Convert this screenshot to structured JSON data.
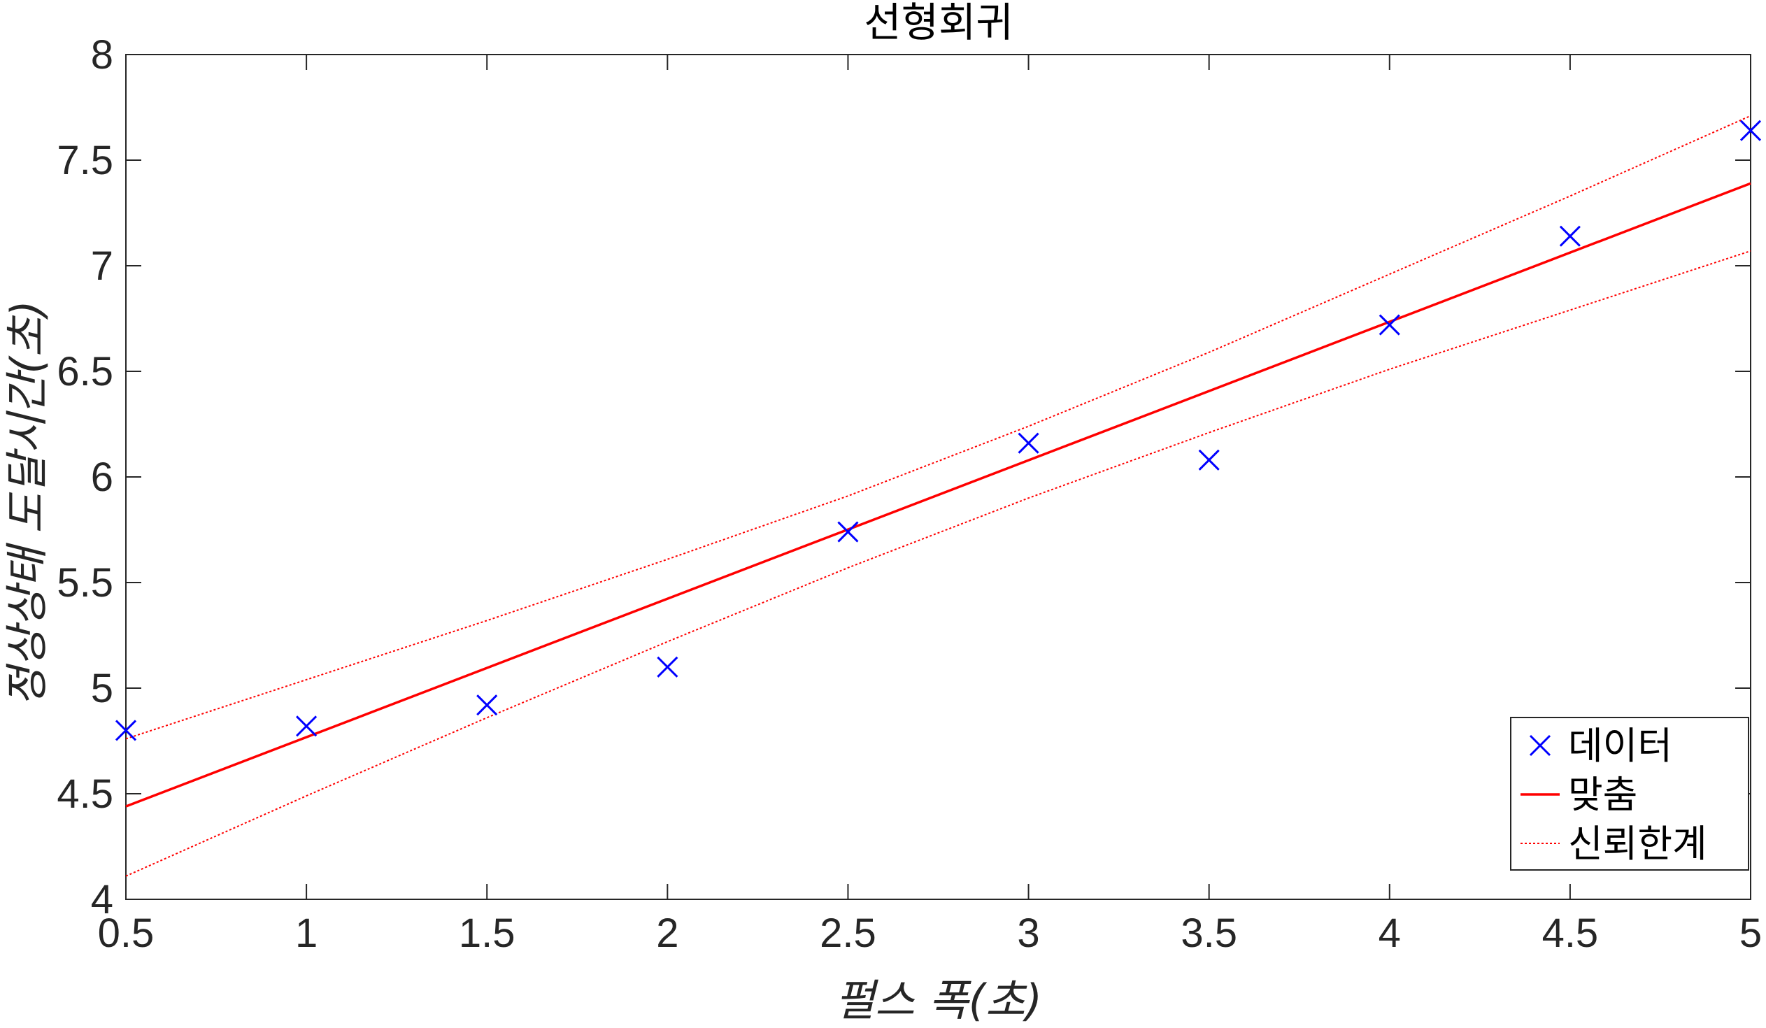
{
  "chart_data": {
    "type": "scatter",
    "title": "선형회귀",
    "xlabel": "펄스 폭(초)",
    "ylabel": "정상상태 도달시간(초)",
    "xlim": [
      0.5,
      5
    ],
    "ylim": [
      4,
      8
    ],
    "xticks": [
      "0.5",
      "1",
      "1.5",
      "2",
      "2.5",
      "3",
      "3.5",
      "4",
      "4.5",
      "5"
    ],
    "yticks": [
      "4",
      "4.5",
      "5",
      "5.5",
      "6",
      "6.5",
      "7",
      "7.5",
      "8"
    ],
    "grid": false,
    "legend_position": "bottom-right",
    "series": [
      {
        "name": "데이터",
        "kind": "marker",
        "marker": "x",
        "color": "#0000ff",
        "points": [
          [
            0.5,
            4.8
          ],
          [
            1.0,
            4.82
          ],
          [
            1.5,
            4.92
          ],
          [
            2.0,
            5.1
          ],
          [
            2.5,
            5.74
          ],
          [
            3.0,
            6.16
          ],
          [
            3.5,
            6.08
          ],
          [
            4.0,
            6.72
          ],
          [
            4.5,
            7.14
          ],
          [
            5.0,
            7.64
          ]
        ]
      },
      {
        "name": "맞춤",
        "kind": "line",
        "color": "#ff0000",
        "points": [
          [
            0.5,
            4.44
          ],
          [
            5.0,
            7.39
          ]
        ]
      },
      {
        "name": "신뢰한계",
        "kind": "dotted-line",
        "color": "#ff0000",
        "upper": [
          [
            0.5,
            4.76
          ],
          [
            1.0,
            5.04
          ],
          [
            1.5,
            5.32
          ],
          [
            2.0,
            5.61
          ],
          [
            2.5,
            5.91
          ],
          [
            3.0,
            6.24
          ],
          [
            3.5,
            6.59
          ],
          [
            4.0,
            6.96
          ],
          [
            4.5,
            7.33
          ],
          [
            5.0,
            7.71
          ]
        ],
        "lower": [
          [
            0.5,
            4.11
          ],
          [
            1.0,
            4.49
          ],
          [
            1.5,
            4.86
          ],
          [
            2.0,
            5.22
          ],
          [
            2.5,
            5.57
          ],
          [
            3.0,
            5.9
          ],
          [
            3.5,
            6.21
          ],
          [
            4.0,
            6.51
          ],
          [
            4.5,
            6.79
          ],
          [
            5.0,
            7.07
          ]
        ]
      }
    ]
  }
}
